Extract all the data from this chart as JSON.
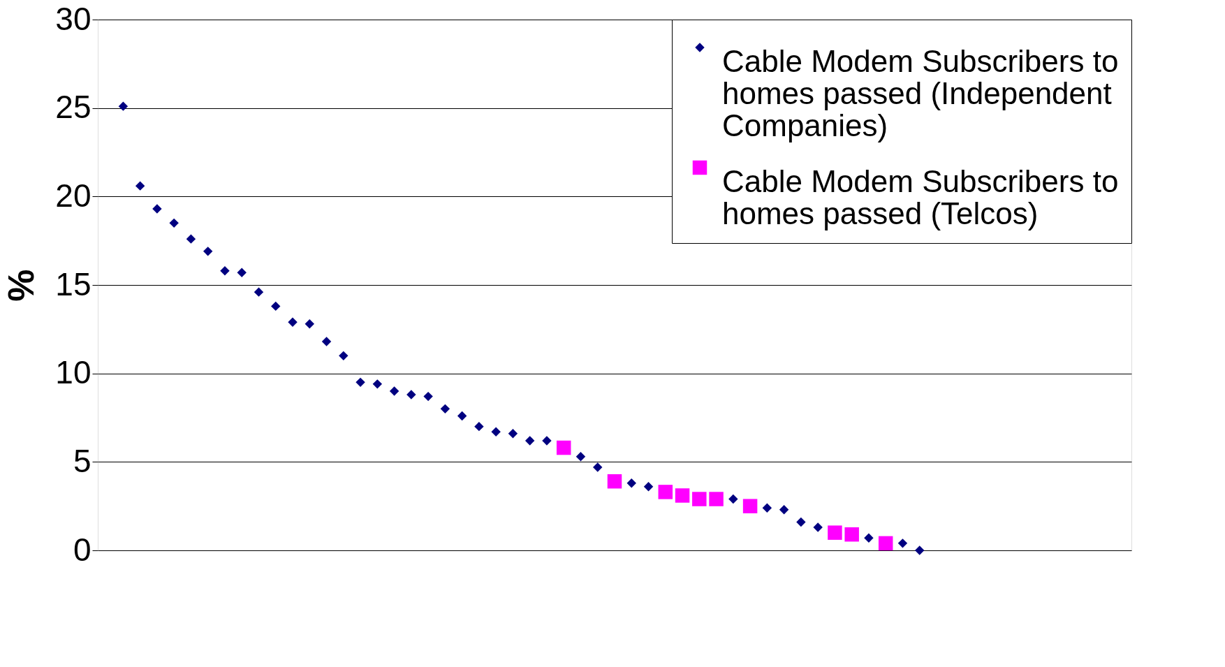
{
  "chart_data": {
    "type": "scatter",
    "ylabel": "%",
    "categories": [
      null,
      null,
      null,
      null,
      null,
      null,
      null,
      null,
      null,
      null,
      null,
      null,
      null,
      null,
      null,
      null,
      null,
      null,
      null,
      null,
      null,
      null,
      null,
      null,
      null,
      null,
      null,
      null,
      null,
      null,
      null,
      null,
      null,
      null,
      null,
      null,
      null,
      null,
      null,
      null,
      null,
      null,
      null,
      null,
      null,
      null,
      null,
      null,
      null,
      null,
      null,
      null,
      null,
      null,
      null,
      null,
      null,
      null,
      null,
      null,
      null
    ],
    "series": [
      {
        "name": "Cable Modem Subscribers to homes passed (Independent Companies)",
        "color": "#000080",
        "marker": "diamond",
        "values": [
          null,
          25.1,
          20.6,
          19.3,
          18.5,
          17.6,
          16.9,
          15.8,
          15.7,
          14.6,
          13.8,
          12.9,
          12.8,
          11.8,
          11.0,
          9.5,
          9.4,
          9.0,
          8.8,
          8.7,
          8.0,
          7.6,
          7.0,
          6.7,
          6.6,
          6.2,
          6.2,
          null,
          5.3,
          4.7,
          null,
          3.8,
          3.6,
          null,
          null,
          null,
          null,
          2.9,
          null,
          2.4,
          2.3,
          1.6,
          1.3,
          null,
          null,
          0.7,
          null,
          0.4,
          0.0,
          null,
          null,
          null,
          null,
          null,
          null,
          null,
          null,
          null,
          null,
          null,
          null
        ]
      },
      {
        "name": "Cable Modem Subscribers to homes passed (Telcos)",
        "color": "#ff00ff",
        "marker": "square",
        "values": [
          null,
          null,
          null,
          null,
          null,
          null,
          null,
          null,
          null,
          null,
          null,
          null,
          null,
          null,
          null,
          null,
          null,
          null,
          null,
          null,
          null,
          null,
          null,
          null,
          null,
          null,
          null,
          5.8,
          null,
          null,
          3.9,
          null,
          null,
          3.3,
          3.1,
          2.9,
          2.9,
          null,
          2.5,
          null,
          null,
          null,
          null,
          1.0,
          0.9,
          null,
          0.4,
          null,
          null,
          null,
          null,
          null,
          null,
          null,
          null,
          null,
          null,
          null,
          null,
          null,
          null
        ]
      }
    ],
    "ylim": [
      0,
      30
    ],
    "yticks": [
      0,
      5,
      10,
      15,
      20,
      25,
      30
    ],
    "grid": "y",
    "legend": "top right",
    "tick_labels": "y"
  }
}
